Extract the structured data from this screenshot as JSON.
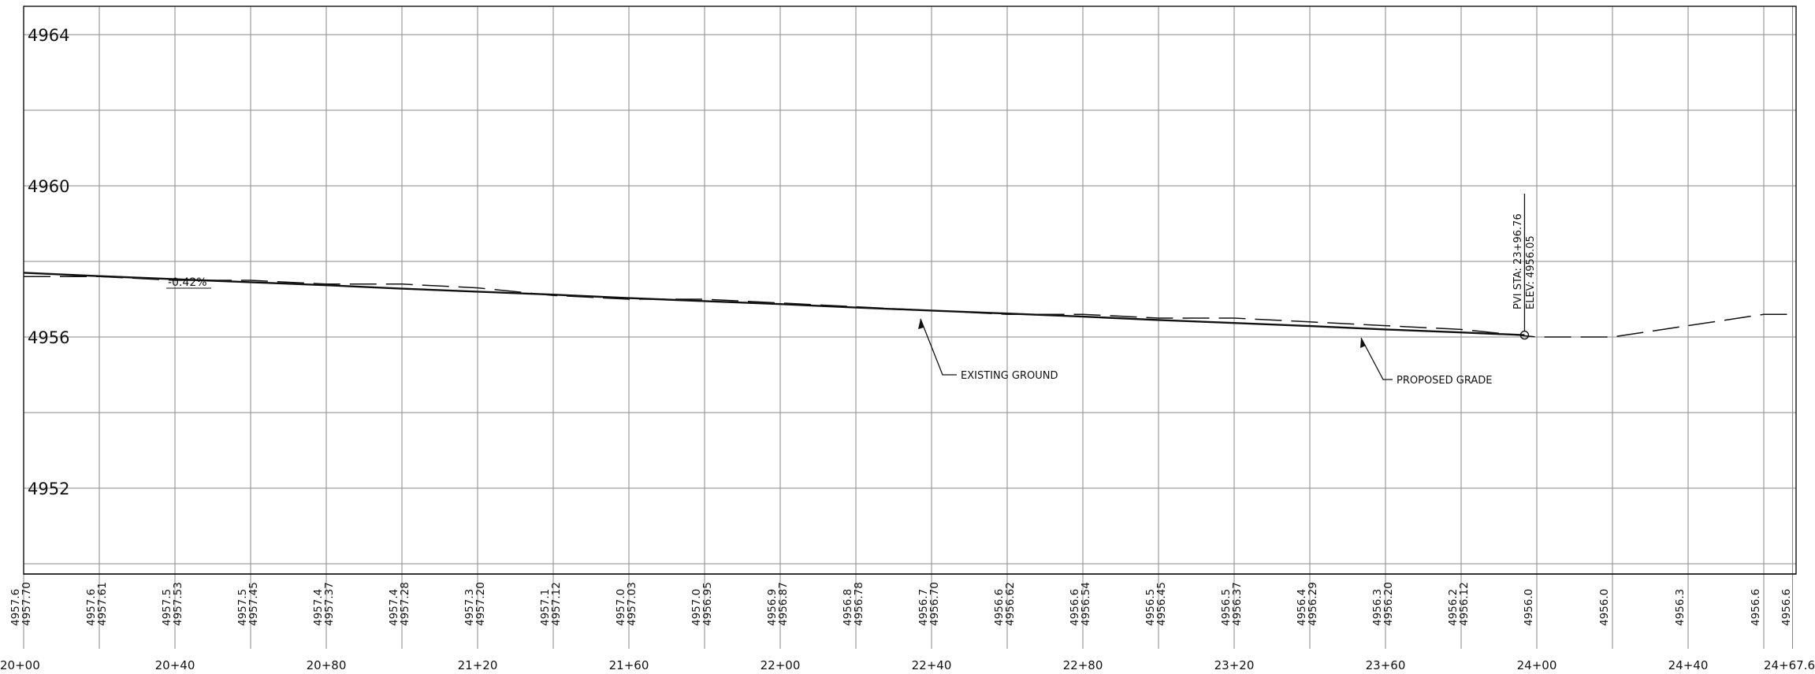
{
  "profile": {
    "elevation_labels": [
      "4964",
      "4960",
      "4956",
      "4952"
    ],
    "station_labels": [
      "20+00",
      "20+40",
      "20+80",
      "21+20",
      "21+60",
      "22+00",
      "22+40",
      "22+80",
      "23+20",
      "23+60",
      "24+00",
      "24+40",
      "24+67.6"
    ],
    "existing_ground_elevations": [
      "4957.6",
      "4957.6",
      "4957.5",
      "4957.5",
      "4957.4",
      "4957.4",
      "4957.3",
      "4957.1",
      "4957.0",
      "4957.0",
      "4956.9",
      "4956.8",
      "4956.7",
      "4956.6",
      "4956.6",
      "4956.5",
      "4956.5",
      "4956.4",
      "4956.3",
      "4956.2",
      "4956.0",
      "4956.0",
      "4956.3",
      "4956.6",
      "4956.6"
    ],
    "proposed_grade_elevations": [
      "4957.70",
      "4957.61",
      "4957.53",
      "4957.45",
      "4957.37",
      "4957.28",
      "4957.20",
      "4957.12",
      "4957.03",
      "4956.95",
      "4956.87",
      "4956.78",
      "4956.70",
      "4956.62",
      "4956.54",
      "4956.45",
      "4956.37",
      "4956.29",
      "4956.20",
      "4956.12"
    ],
    "grade_slope": "-0.42%",
    "pvi_station": "PVI STA: 23+96.76",
    "pvi_elevation": "ELEV: 4956.05",
    "existing_ground_label": "EXISTING GROUND",
    "proposed_grade_label": "PROPOSED GRADE"
  },
  "chart_data": {
    "type": "line",
    "x_unit": "station (ft)",
    "y_unit": "elevation (ft)",
    "xlim": [
      2000,
      2467.6
    ],
    "ylim": [
      4948,
      4965
    ],
    "grid": true,
    "series": [
      {
        "name": "EXISTING GROUND",
        "style": "dashed",
        "x": [
          2000,
          2020,
          2040,
          2060,
          2080,
          2100,
          2120,
          2140,
          2160,
          2180,
          2200,
          2220,
          2240,
          2260,
          2280,
          2300,
          2320,
          2340,
          2360,
          2380,
          2400,
          2420,
          2440,
          2460,
          2467.6
        ],
        "y": [
          4957.6,
          4957.6,
          4957.5,
          4957.5,
          4957.4,
          4957.4,
          4957.3,
          4957.1,
          4957.0,
          4957.0,
          4956.9,
          4956.8,
          4956.7,
          4956.6,
          4956.6,
          4956.5,
          4956.5,
          4956.4,
          4956.3,
          4956.2,
          4956.0,
          4956.0,
          4956.3,
          4956.6,
          4956.6
        ]
      },
      {
        "name": "PROPOSED GRADE",
        "style": "solid",
        "x": [
          2000,
          2020,
          2040,
          2060,
          2080,
          2100,
          2120,
          2140,
          2160,
          2180,
          2200,
          2220,
          2240,
          2260,
          2280,
          2300,
          2320,
          2340,
          2360,
          2380,
          2396.76
        ],
        "y": [
          4957.7,
          4957.61,
          4957.53,
          4957.45,
          4957.37,
          4957.28,
          4957.2,
          4957.12,
          4957.03,
          4956.95,
          4956.87,
          4956.78,
          4956.7,
          4956.62,
          4956.54,
          4956.45,
          4956.37,
          4956.29,
          4956.2,
          4956.12,
          4956.05
        ]
      }
    ],
    "pvi": {
      "station": 2396.76,
      "elevation": 4956.05
    },
    "grade_percent": -0.42
  }
}
